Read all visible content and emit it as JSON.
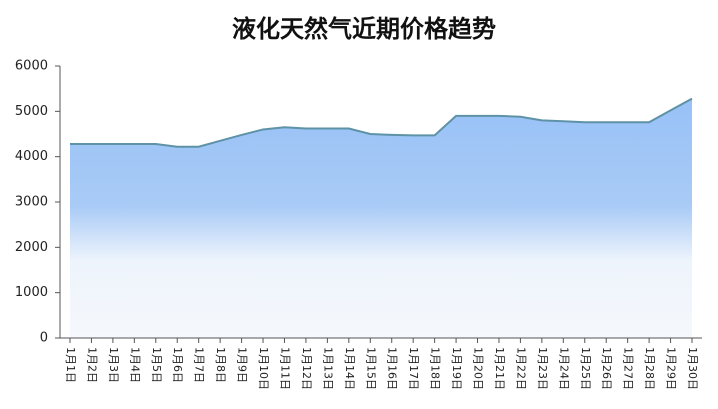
{
  "chart_data": {
    "type": "area",
    "title": "液化天然气近期价格趋势",
    "categories": [
      "1月1日",
      "1月2日",
      "1月3日",
      "1月4日",
      "1月5日",
      "1月6日",
      "1月7日",
      "1月8日",
      "1月9日",
      "1月10日",
      "1月11日",
      "1月12日",
      "1月13日",
      "1月14日",
      "1月15日",
      "1月16日",
      "1月17日",
      "1月18日",
      "1月19日",
      "1月20日",
      "1月21日",
      "1月22日",
      "1月23日",
      "1月24日",
      "1月25日",
      "1月26日",
      "1月27日",
      "1月28日",
      "1月29日",
      "1月30日"
    ],
    "values": [
      4280,
      4280,
      4280,
      4280,
      4280,
      4220,
      4220,
      4350,
      4480,
      4600,
      4650,
      4620,
      4620,
      4620,
      4500,
      4480,
      4470,
      4470,
      4900,
      4900,
      4900,
      4880,
      4800,
      4780,
      4760,
      4760,
      4760,
      4760,
      5020,
      5280
    ],
    "color": "#5e92a6",
    "ylim": [
      0,
      6000
    ],
    "yticks": [
      0,
      1000,
      2000,
      3000,
      4000,
      5000,
      6000
    ]
  }
}
